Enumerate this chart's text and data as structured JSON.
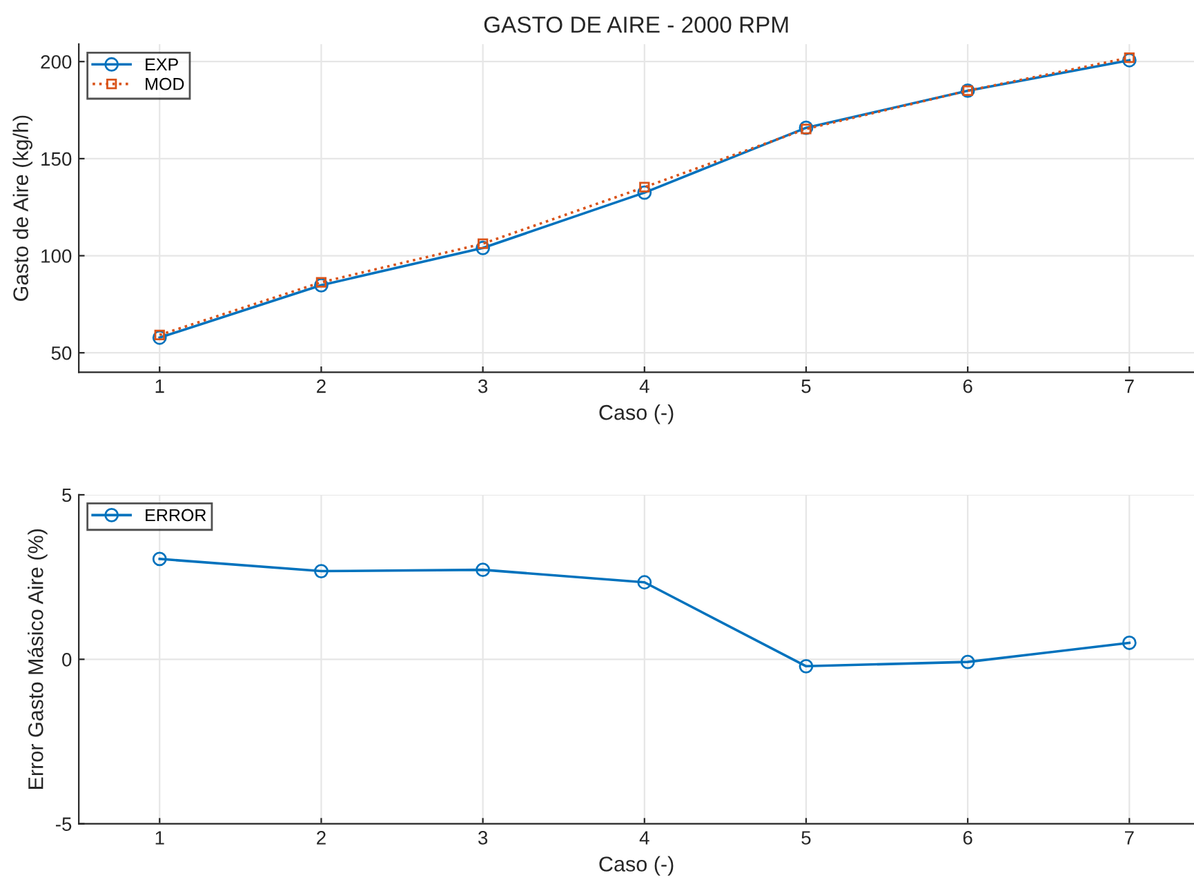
{
  "chart_data": [
    {
      "type": "line",
      "title": "GASTO DE AIRE - 2000 RPM",
      "xlabel": "Caso (-)",
      "ylabel": "Gasto de Aire (kg/h)",
      "x": [
        1,
        2,
        3,
        4,
        5,
        6,
        7
      ],
      "xlim": [
        0.5,
        7.4
      ],
      "xticks": [
        1,
        2,
        3,
        4,
        5,
        6,
        7
      ],
      "ylim": [
        40,
        209
      ],
      "yticks": [
        50,
        100,
        150,
        200
      ],
      "grid": true,
      "legend": "top left",
      "series": [
        {
          "name": "EXP",
          "color": "#0072bd",
          "values": [
            57.8,
            84.8,
            104,
            132.5,
            165.9,
            185,
            200.7
          ],
          "marker": "circle",
          "line_style": "solid"
        },
        {
          "name": "MOD",
          "color": "#d95319",
          "values": [
            59.2,
            86.3,
            106.2,
            135.3,
            165.3,
            185,
            202
          ],
          "marker": "square",
          "line_style": "dotted"
        }
      ]
    },
    {
      "type": "line",
      "xlabel": "Caso (-)",
      "ylabel": "Error Gasto Másico Aire (%)",
      "x": [
        1,
        2,
        3,
        4,
        5,
        6,
        7
      ],
      "xlim": [
        0.5,
        7.4
      ],
      "xticks": [
        1,
        2,
        3,
        4,
        5,
        6,
        7
      ],
      "ylim": [
        -5,
        5
      ],
      "yticks": [
        -5,
        0,
        5
      ],
      "grid": true,
      "legend": "top left",
      "series": [
        {
          "name": "ERROR",
          "color": "#0072bd",
          "values": [
            3.05,
            2.68,
            2.72,
            2.34,
            -0.21,
            -0.08,
            0.5
          ],
          "marker": "circle",
          "line_style": "solid"
        }
      ]
    }
  ]
}
